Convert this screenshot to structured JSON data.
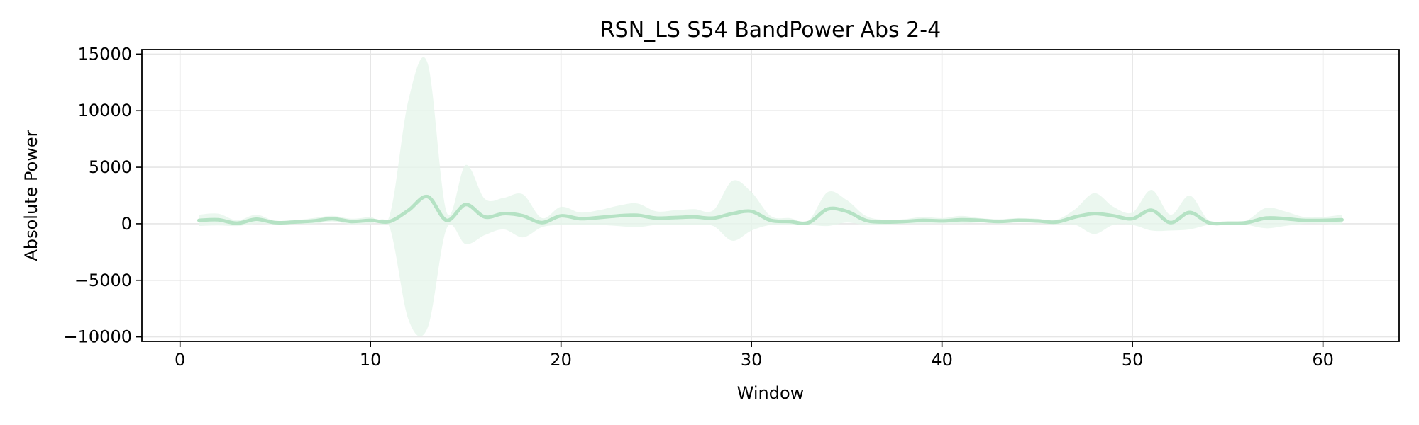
{
  "chart_data": {
    "type": "line",
    "title": "RSN_LS S54 BandPower Abs 2-4",
    "xlabel": "Window",
    "ylabel": "Absolute Power",
    "xlim": [
      -2,
      64
    ],
    "ylim": [
      -10400,
      15400
    ],
    "xticks": [
      0,
      10,
      20,
      30,
      40,
      50,
      60
    ],
    "yticks": [
      -10000,
      -5000,
      0,
      5000,
      10000,
      15000
    ],
    "xtick_labels": [
      "0",
      "10",
      "20",
      "30",
      "40",
      "50",
      "60"
    ],
    "ytick_labels": [
      "−10000",
      "−5000",
      "0",
      "5000",
      "10000",
      "15000"
    ],
    "grid": true,
    "colors": {
      "line": "#b5e2c4",
      "band": "#e6f5eb"
    },
    "series": [
      {
        "x": [
          1,
          2,
          3,
          4,
          5,
          6,
          7,
          8,
          9,
          10,
          11,
          12,
          13,
          14,
          15,
          16,
          17,
          18,
          19,
          20,
          21,
          22,
          23,
          24,
          25,
          26,
          27,
          28,
          29,
          30,
          31,
          32,
          33,
          34,
          35,
          36,
          37,
          38,
          39,
          40,
          41,
          42,
          43,
          44,
          45,
          46,
          47,
          48,
          49,
          50,
          51,
          52,
          53,
          54,
          55,
          56,
          57,
          58,
          59,
          60,
          61
        ],
        "values": [
          300,
          350,
          50,
          400,
          100,
          150,
          250,
          450,
          200,
          300,
          200,
          1200,
          2400,
          300,
          1700,
          600,
          900,
          700,
          100,
          700,
          450,
          550,
          700,
          750,
          500,
          550,
          600,
          500,
          900,
          1100,
          300,
          200,
          100,
          1300,
          1100,
          300,
          150,
          200,
          300,
          250,
          350,
          300,
          200,
          300,
          250,
          150,
          600,
          900,
          700,
          450,
          1200,
          100,
          1000,
          100,
          50,
          100,
          500,
          450,
          300,
          300,
          350
        ],
        "upper": [
          800,
          900,
          300,
          800,
          250,
          300,
          500,
          700,
          450,
          600,
          700,
          11000,
          14200,
          1000,
          5200,
          2200,
          2300,
          2600,
          500,
          1500,
          1000,
          1200,
          1600,
          1800,
          1100,
          1200,
          1300,
          1200,
          3800,
          2800,
          700,
          500,
          300,
          2800,
          2100,
          700,
          350,
          400,
          600,
          500,
          700,
          500,
          400,
          500,
          450,
          350,
          1300,
          2700,
          1500,
          1000,
          3000,
          800,
          2500,
          300,
          150,
          300,
          1400,
          1100,
          600,
          600,
          800
        ],
        "lower": [
          -200,
          -150,
          -200,
          0,
          -50,
          0,
          0,
          200,
          -50,
          0,
          -300,
          -8500,
          -9200,
          -400,
          -1800,
          -1000,
          -500,
          -1200,
          -300,
          -100,
          -100,
          -100,
          -200,
          -300,
          -100,
          -100,
          -100,
          -200,
          -1500,
          -600,
          -100,
          -100,
          -100,
          -200,
          100,
          -100,
          -50,
          0,
          0,
          0,
          0,
          100,
          0,
          100,
          50,
          -50,
          -100,
          -900,
          -100,
          -100,
          -600,
          -600,
          -500,
          -100,
          -50,
          -100,
          -400,
          -200,
          0,
          0,
          -100
        ]
      }
    ]
  }
}
